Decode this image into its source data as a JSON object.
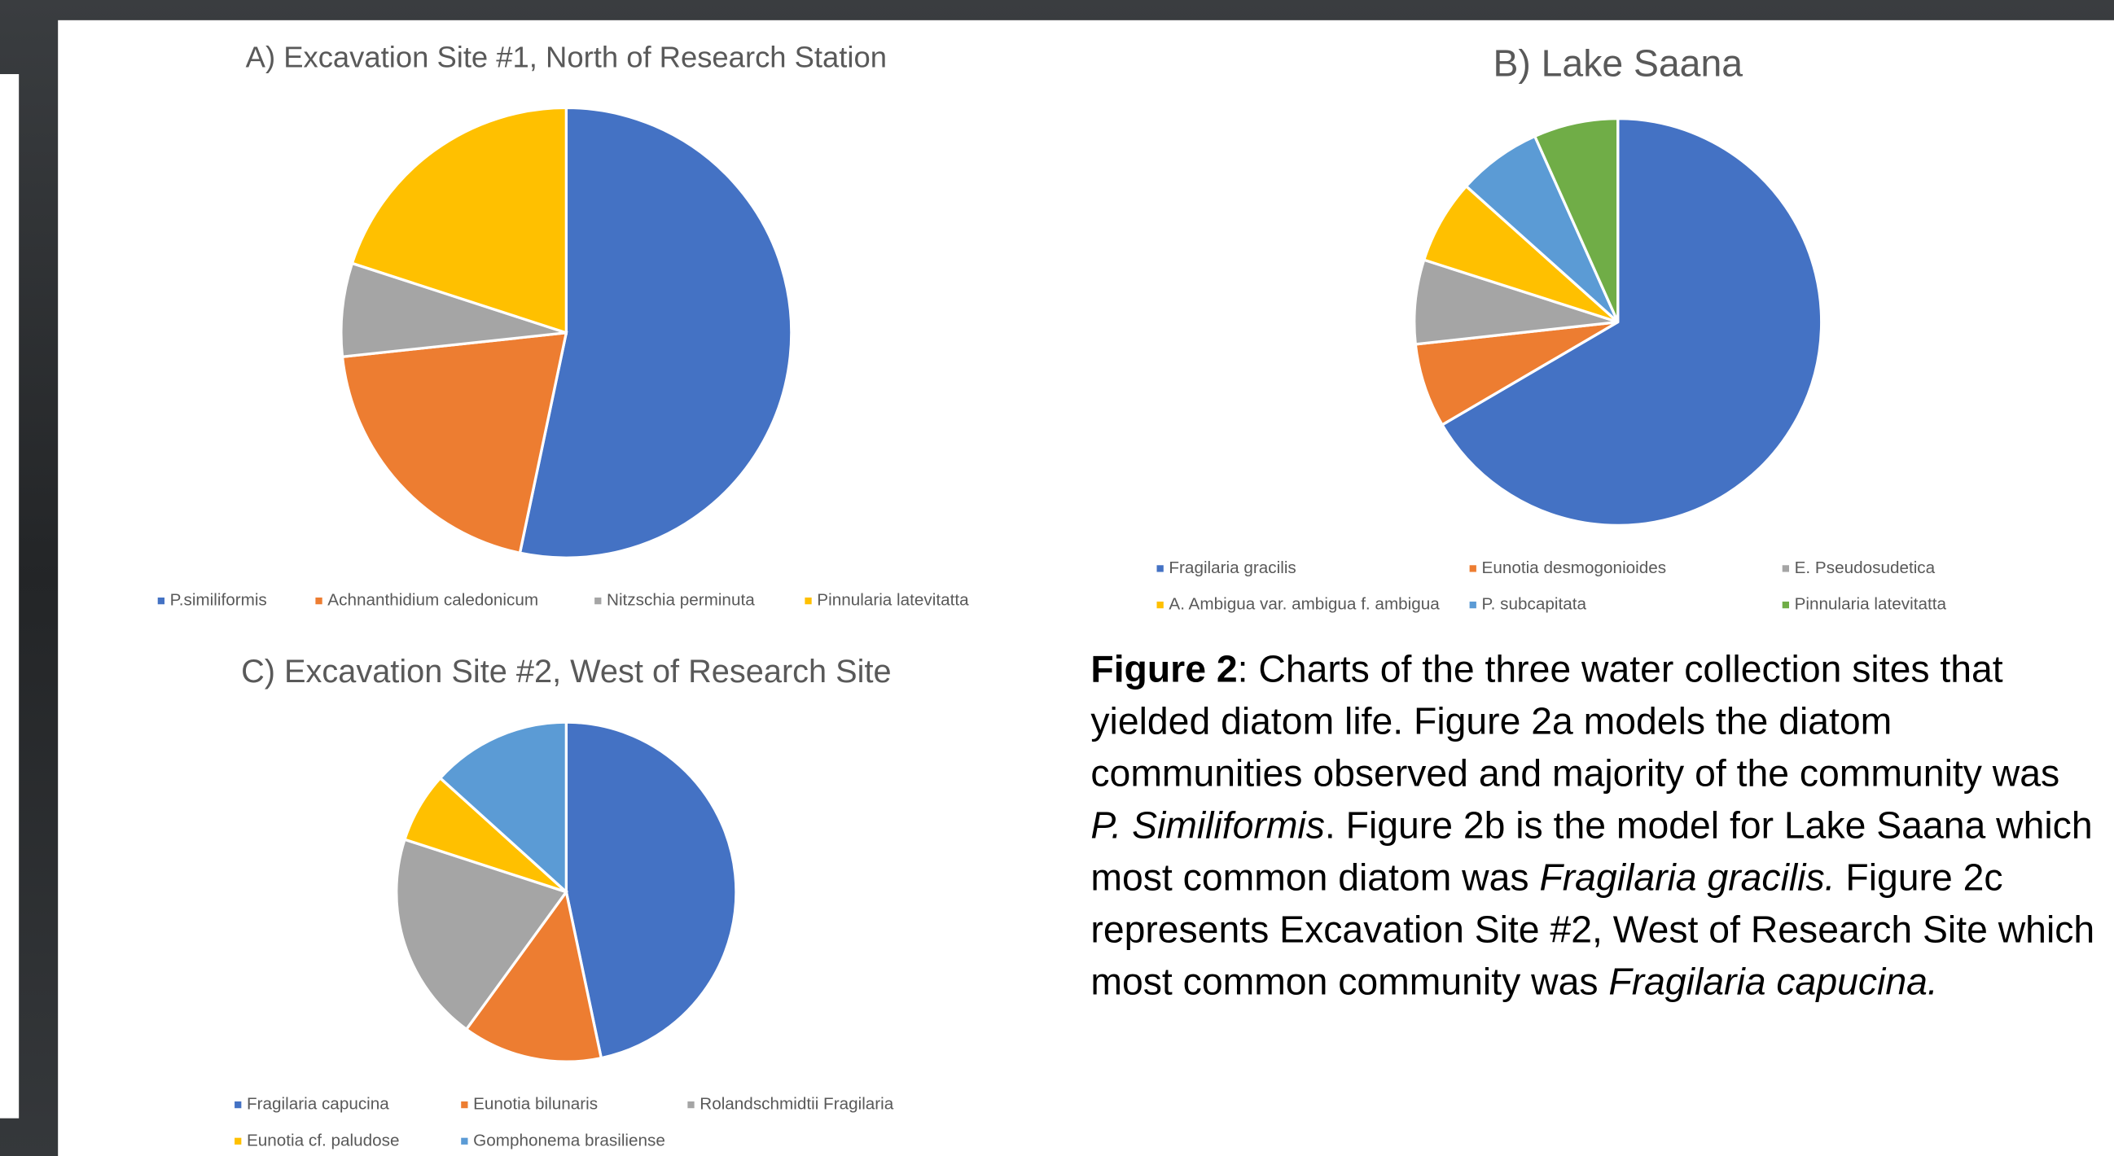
{
  "chart_data": [
    {
      "type": "pie",
      "title": "A) Excavation Site #1, North of Research Station",
      "categories": [
        "P.similiformis",
        "Achnanthidium caledonicum",
        "Nitzschia perminuta",
        "Pinnularia latevitatta"
      ],
      "values": [
        53.3,
        20,
        6.7,
        20
      ],
      "colors": [
        "#4472c4",
        "#ed7d31",
        "#a5a5a5",
        "#ffc000"
      ],
      "legend": "bottom"
    },
    {
      "type": "pie",
      "title": "B) Lake Saana",
      "categories": [
        "Fragilaria gracilis",
        "Eunotia desmogonioides",
        "E. Pseudosudetica",
        "A. Ambigua var. ambigua f. ambigua",
        "P. subcapitata",
        "Pinnularia latevitatta"
      ],
      "values": [
        66.7,
        6.7,
        6.7,
        6.7,
        6.7,
        6.7
      ],
      "colors": [
        "#4472c4",
        "#ed7d31",
        "#a5a5a5",
        "#ffc000",
        "#5b9bd5",
        "#70ad47"
      ],
      "legend": "bottom"
    },
    {
      "type": "pie",
      "title": "C) Excavation Site #2, West of Research Site",
      "categories": [
        "Fragilaria capucina",
        "Eunotia bilunaris",
        "Rolandschmidtii Fragilaria",
        "Eunotia cf. paludose",
        "Gomphonema brasiliense"
      ],
      "values": [
        46.7,
        13.3,
        20,
        6.7,
        13.3
      ],
      "colors": [
        "#4472c4",
        "#ed7d31",
        "#a5a5a5",
        "#ffc000",
        "#5b9bd5"
      ],
      "legend": "bottom"
    }
  ],
  "caption": {
    "lines": [
      [
        {
          "text": "Figure 2",
          "bold": true
        },
        {
          "text": ": Charts of the three water collection sites that"
        }
      ],
      [
        {
          "text": "yielded diatom life. Figure 2a models the diatom"
        }
      ],
      [
        {
          "text": "communities observed and majority of the community was"
        }
      ],
      [
        {
          "text": "P. Similiformis",
          "italic": true
        },
        {
          "text": ". Figure 2b is the model for Lake Saana which"
        }
      ],
      [
        {
          "text": "most common diatom was "
        },
        {
          "text": "Fragilaria gracilis.",
          "italic": true
        },
        {
          "text": " Figure 2c"
        }
      ],
      [
        {
          "text": "represents Excavation Site #2, West of Research Site which"
        }
      ],
      [
        {
          "text": "most common community was "
        },
        {
          "text": "Fragilaria capucina.",
          "italic": true
        }
      ]
    ]
  }
}
